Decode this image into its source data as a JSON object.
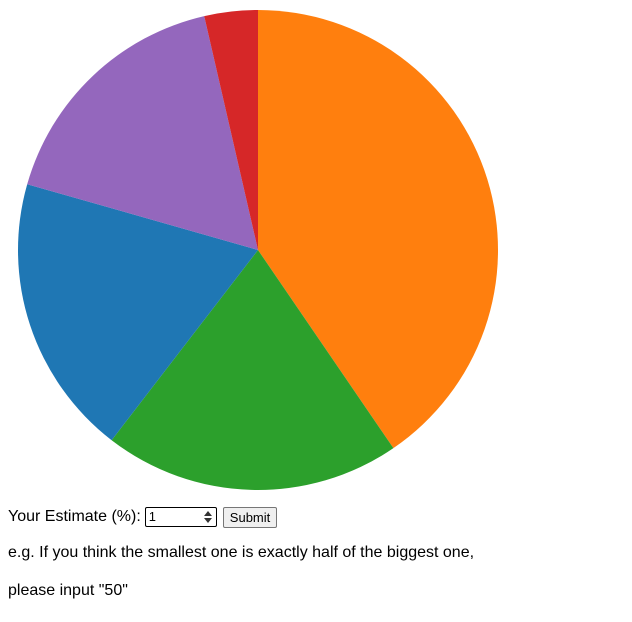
{
  "chart_data": {
    "type": "pie",
    "start_angle_deg": 0,
    "direction": "clockwise",
    "slices": [
      {
        "value": 40.5,
        "color": "#ff7f0e"
      },
      {
        "value": 20.0,
        "color": "#2ca02c"
      },
      {
        "value": 19.0,
        "color": "#1f77b4"
      },
      {
        "value": 17.0,
        "color": "#9467bd"
      },
      {
        "value": 3.6,
        "color": "#d62728"
      }
    ]
  },
  "form": {
    "label": "Your Estimate (%):",
    "input_value": "1",
    "submit_label": "Submit"
  },
  "instructions": {
    "line1": "e.g. If you think the smallest one is exactly half of the biggest one,",
    "line2": "please input \"50\""
  }
}
